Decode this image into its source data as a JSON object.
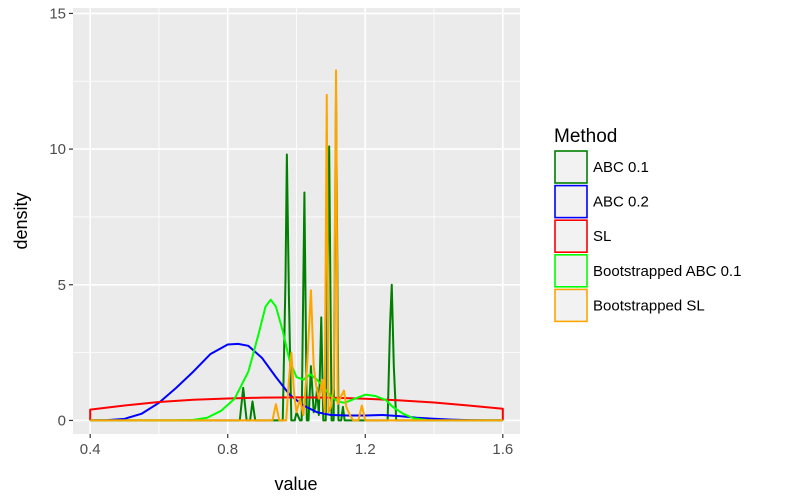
{
  "chart_data": {
    "type": "line",
    "xlabel": "value",
    "ylabel": "density",
    "xlim": [
      0.35,
      1.65
    ],
    "ylim": [
      -0.5,
      15.2
    ],
    "x_ticks": [
      0.4,
      0.8,
      1.2,
      1.6
    ],
    "x_tick_labels": [
      "0.4",
      "0.8",
      "1.2",
      "1.6"
    ],
    "y_ticks": [
      0,
      5,
      10,
      15
    ],
    "y_tick_labels": [
      "0",
      "5",
      "10",
      "15"
    ],
    "x_minor_gridlines": [
      0.6,
      1.0,
      1.4
    ],
    "y_minor_gridlines": [
      2.5,
      7.5,
      12.5
    ],
    "grid": true,
    "legend": {
      "title": "Method",
      "placement": "right"
    },
    "series": [
      {
        "name": "ABC 0.1",
        "color": "#008000",
        "points": [
          [
            0.4,
            0
          ],
          [
            0.835,
            0
          ],
          [
            0.845,
            1.2
          ],
          [
            0.855,
            0
          ],
          [
            0.865,
            0
          ],
          [
            0.872,
            0.7
          ],
          [
            0.88,
            0
          ],
          [
            0.96,
            0
          ],
          [
            0.968,
            5.2
          ],
          [
            0.972,
            9.8
          ],
          [
            0.978,
            4.5
          ],
          [
            0.985,
            0
          ],
          [
            0.995,
            0
          ],
          [
            1.0,
            0.3
          ],
          [
            1.01,
            0
          ],
          [
            1.015,
            0
          ],
          [
            1.023,
            8.4
          ],
          [
            1.03,
            0
          ],
          [
            1.035,
            0
          ],
          [
            1.042,
            2.0
          ],
          [
            1.05,
            0.3
          ],
          [
            1.055,
            0.5
          ],
          [
            1.06,
            1.2
          ],
          [
            1.065,
            0.2
          ],
          [
            1.072,
            3.8
          ],
          [
            1.078,
            0
          ],
          [
            1.085,
            0
          ],
          [
            1.095,
            10.1
          ],
          [
            1.102,
            0
          ],
          [
            1.108,
            0
          ],
          [
            1.115,
            12.1
          ],
          [
            1.122,
            0
          ],
          [
            1.13,
            0
          ],
          [
            1.135,
            0.5
          ],
          [
            1.14,
            0
          ],
          [
            1.265,
            0
          ],
          [
            1.272,
            3.5
          ],
          [
            1.277,
            5.0
          ],
          [
            1.283,
            2.0
          ],
          [
            1.29,
            0
          ],
          [
            1.6,
            0
          ]
        ]
      },
      {
        "name": "ABC 0.2",
        "color": "#0000ff",
        "points": [
          [
            0.4,
            0
          ],
          [
            0.45,
            0.01
          ],
          [
            0.5,
            0.06
          ],
          [
            0.55,
            0.25
          ],
          [
            0.6,
            0.65
          ],
          [
            0.65,
            1.2
          ],
          [
            0.7,
            1.8
          ],
          [
            0.75,
            2.45
          ],
          [
            0.8,
            2.8
          ],
          [
            0.83,
            2.82
          ],
          [
            0.86,
            2.75
          ],
          [
            0.9,
            2.3
          ],
          [
            0.94,
            1.6
          ],
          [
            0.98,
            0.95
          ],
          [
            1.02,
            0.55
          ],
          [
            1.06,
            0.3
          ],
          [
            1.1,
            0.2
          ],
          [
            1.15,
            0.18
          ],
          [
            1.2,
            0.18
          ],
          [
            1.25,
            0.2
          ],
          [
            1.3,
            0.16
          ],
          [
            1.35,
            0.1
          ],
          [
            1.4,
            0.06
          ],
          [
            1.45,
            0.03
          ],
          [
            1.5,
            0.01
          ],
          [
            1.55,
            0.0
          ],
          [
            1.6,
            0
          ]
        ]
      },
      {
        "name": "SL",
        "color": "#ff0000",
        "points": [
          [
            0.4,
            0
          ],
          [
            0.4,
            0.4
          ],
          [
            0.5,
            0.55
          ],
          [
            0.6,
            0.68
          ],
          [
            0.7,
            0.76
          ],
          [
            0.8,
            0.81
          ],
          [
            0.9,
            0.84
          ],
          [
            1.0,
            0.85
          ],
          [
            1.1,
            0.84
          ],
          [
            1.2,
            0.8
          ],
          [
            1.3,
            0.74
          ],
          [
            1.4,
            0.66
          ],
          [
            1.5,
            0.55
          ],
          [
            1.6,
            0.43
          ],
          [
            1.6,
            0
          ]
        ]
      },
      {
        "name": "Bootstrapped ABC 0.1",
        "color": "#00ff00",
        "points": [
          [
            0.4,
            0
          ],
          [
            0.65,
            0
          ],
          [
            0.7,
            0.02
          ],
          [
            0.74,
            0.1
          ],
          [
            0.78,
            0.35
          ],
          [
            0.82,
            0.8
          ],
          [
            0.86,
            1.8
          ],
          [
            0.89,
            3.2
          ],
          [
            0.91,
            4.2
          ],
          [
            0.925,
            4.45
          ],
          [
            0.94,
            4.2
          ],
          [
            0.96,
            3.3
          ],
          [
            0.98,
            2.2
          ],
          [
            1.0,
            1.6
          ],
          [
            1.02,
            1.5
          ],
          [
            1.04,
            1.7
          ],
          [
            1.06,
            1.5
          ],
          [
            1.08,
            1.2
          ],
          [
            1.1,
            0.9
          ],
          [
            1.12,
            0.7
          ],
          [
            1.14,
            0.65
          ],
          [
            1.17,
            0.8
          ],
          [
            1.2,
            0.95
          ],
          [
            1.23,
            0.9
          ],
          [
            1.26,
            0.75
          ],
          [
            1.28,
            0.5
          ],
          [
            1.31,
            0.25
          ],
          [
            1.34,
            0.08
          ],
          [
            1.38,
            0.01
          ],
          [
            1.4,
            0
          ],
          [
            1.6,
            0
          ]
        ]
      },
      {
        "name": "Bootstrapped SL",
        "color": "#ffa500",
        "points": [
          [
            0.4,
            0
          ],
          [
            0.93,
            0
          ],
          [
            0.94,
            0.6
          ],
          [
            0.95,
            0
          ],
          [
            0.97,
            0
          ],
          [
            0.978,
            1.5
          ],
          [
            0.985,
            2.5
          ],
          [
            0.993,
            1.0
          ],
          [
            1.0,
            0.3
          ],
          [
            1.01,
            0.8
          ],
          [
            1.02,
            0.2
          ],
          [
            1.03,
            1.8
          ],
          [
            1.042,
            4.8
          ],
          [
            1.05,
            2.0
          ],
          [
            1.057,
            1.3
          ],
          [
            1.065,
            0.8
          ],
          [
            1.075,
            1.5
          ],
          [
            1.082,
            0.3
          ],
          [
            1.088,
            12.0
          ],
          [
            1.093,
            0.3
          ],
          [
            1.1,
            0.5
          ],
          [
            1.108,
            1.2
          ],
          [
            1.115,
            12.9
          ],
          [
            1.12,
            0.6
          ],
          [
            1.13,
            0.9
          ],
          [
            1.138,
            1.1
          ],
          [
            1.145,
            0.5
          ],
          [
            1.155,
            0.2
          ],
          [
            1.165,
            0
          ],
          [
            1.18,
            0
          ],
          [
            1.19,
            0.55
          ],
          [
            1.2,
            0
          ],
          [
            1.6,
            0
          ]
        ]
      }
    ]
  }
}
